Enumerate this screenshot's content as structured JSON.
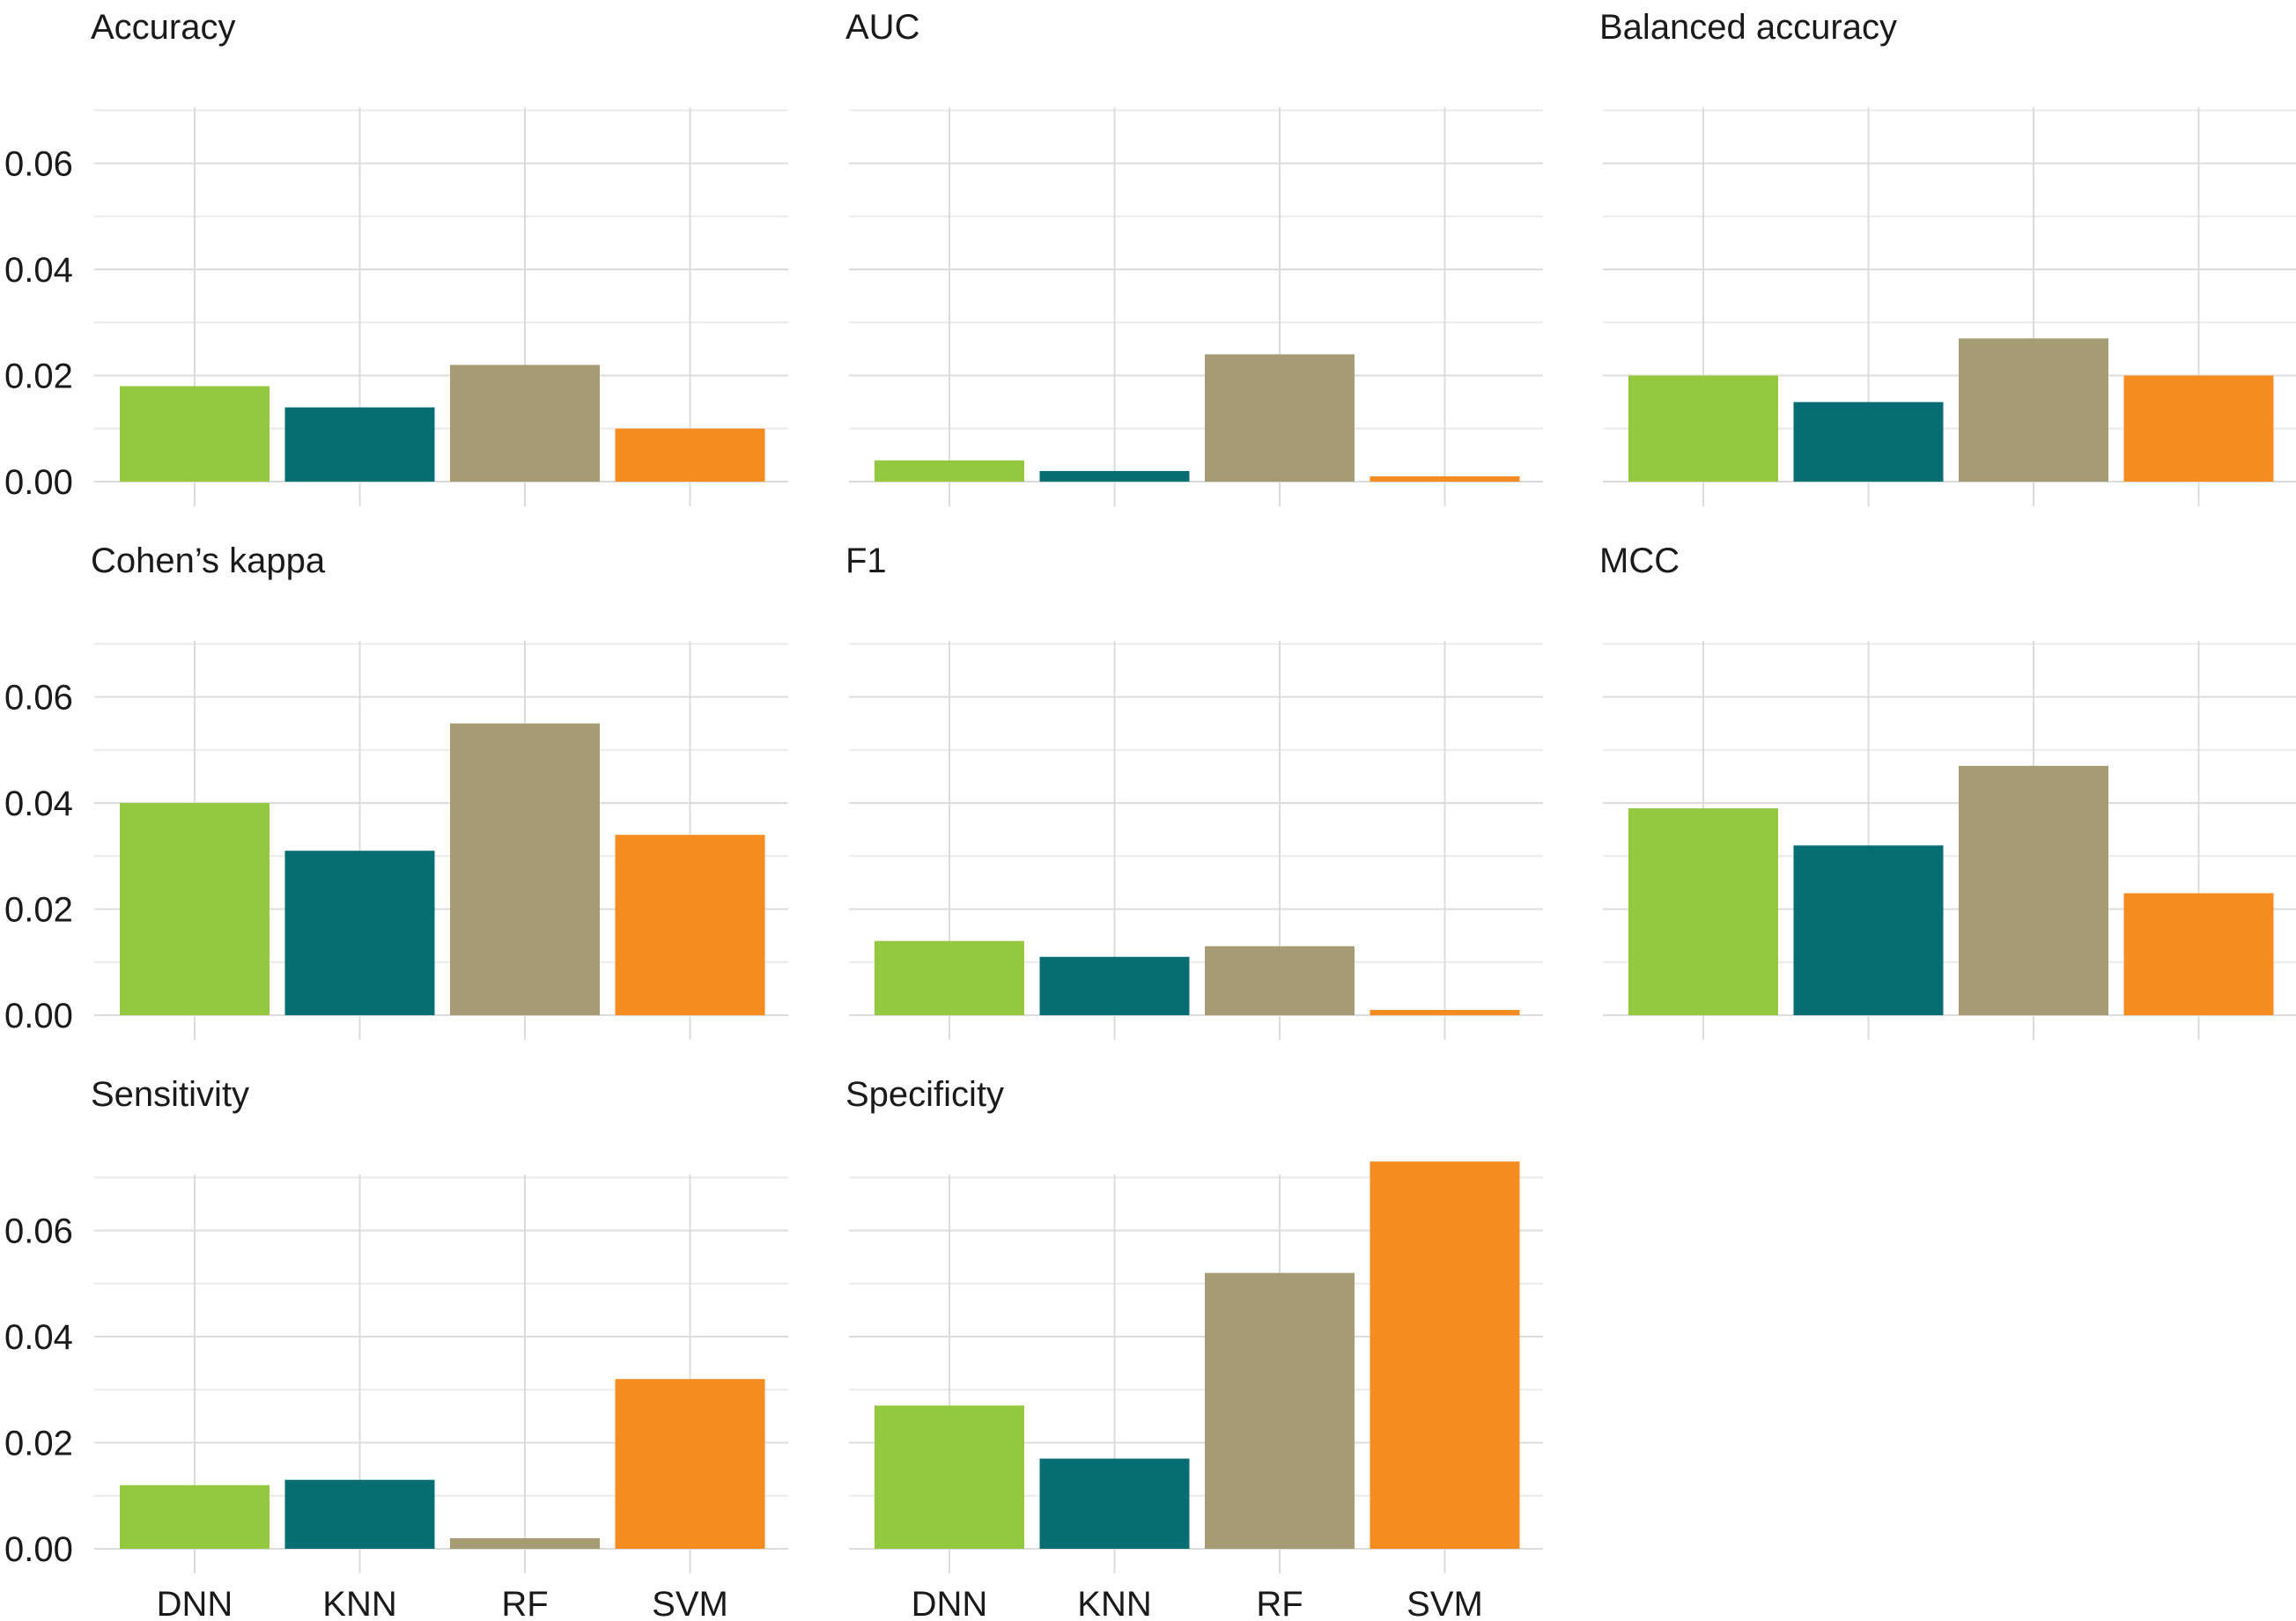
{
  "chart_data": {
    "type": "bar",
    "layout": "facet-grid",
    "categories": [
      "DNN",
      "KNN",
      "RF",
      "SVM"
    ],
    "colors": {
      "DNN": "#93c83f",
      "KNN": "#066d72",
      "RF": "#a59b75",
      "SVM": "#f68c21"
    },
    "y_ticks": [
      "0.00",
      "0.02",
      "0.04",
      "0.06"
    ],
    "ylim": [
      0,
      0.075
    ],
    "panels": [
      {
        "title": "Accuracy",
        "values": [
          0.018,
          0.014,
          0.022,
          0.01
        ]
      },
      {
        "title": "AUC",
        "values": [
          0.004,
          0.002,
          0.024,
          0.001
        ]
      },
      {
        "title": "Balanced accuracy",
        "values": [
          0.02,
          0.015,
          0.027,
          0.02
        ]
      },
      {
        "title": "Cohen’s kappa",
        "values": [
          0.04,
          0.031,
          0.055,
          0.034
        ]
      },
      {
        "title": "F1",
        "values": [
          0.014,
          0.011,
          0.013,
          0.001
        ]
      },
      {
        "title": "MCC",
        "values": [
          0.039,
          0.032,
          0.047,
          0.023
        ]
      },
      {
        "title": "Sensitivity",
        "values": [
          0.012,
          0.013,
          0.002,
          0.032
        ]
      },
      {
        "title": "Specificity",
        "values": [
          0.027,
          0.017,
          0.052,
          0.073
        ]
      }
    ]
  }
}
